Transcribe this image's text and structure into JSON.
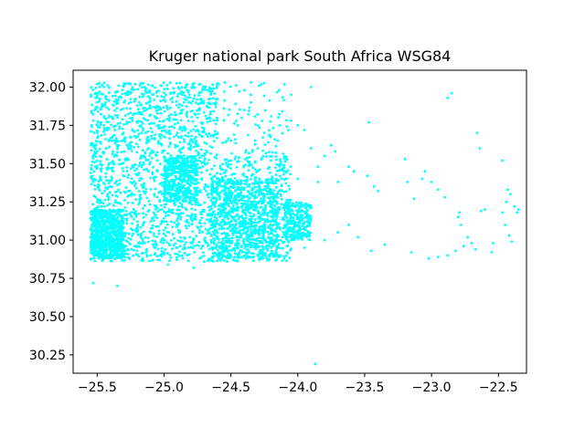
{
  "chart_data": {
    "type": "scatter",
    "title": "Kruger national park South Africa  WSG84",
    "xlabel": "",
    "ylabel": "",
    "xlim": [
      -25.68,
      -22.29
    ],
    "ylim": [
      30.13,
      32.11
    ],
    "grid": false,
    "marker_color": "#00ffff",
    "x_ticks": [
      -25.5,
      -25.0,
      -24.5,
      -24.0,
      -23.5,
      -23.0,
      -22.5
    ],
    "x_tick_labels": [
      "−25.5",
      "−25.0",
      "−24.5",
      "−24.0",
      "−23.5",
      "−23.0",
      "−22.5"
    ],
    "y_ticks": [
      30.25,
      30.5,
      30.75,
      31.0,
      31.25,
      31.5,
      31.75,
      32.0
    ],
    "y_tick_labels": [
      "30.25",
      "30.50",
      "30.75",
      "31.00",
      "31.25",
      "31.50",
      "31.75",
      "32.00"
    ],
    "series": [
      {
        "points": [
          [
            -25.53,
            30.72
          ],
          [
            -25.35,
            30.7
          ],
          [
            -23.87,
            30.19
          ],
          [
            -24.97,
            30.84
          ],
          [
            -24.78,
            30.82
          ],
          [
            -24.1,
            30.88
          ],
          [
            -24.3,
            30.9
          ],
          [
            -24.55,
            30.92
          ],
          [
            -24.7,
            30.86
          ],
          [
            -23.95,
            30.95
          ],
          [
            -23.8,
            31.0
          ],
          [
            -23.7,
            31.05
          ],
          [
            -23.62,
            31.1
          ],
          [
            -23.55,
            31.02
          ],
          [
            -23.45,
            30.93
          ],
          [
            -23.35,
            30.97
          ],
          [
            -23.15,
            30.92
          ],
          [
            -23.02,
            30.88
          ],
          [
            -22.95,
            30.89
          ],
          [
            -22.88,
            30.9
          ],
          [
            -22.82,
            30.93
          ],
          [
            -22.76,
            30.96
          ],
          [
            -22.73,
            31.02
          ],
          [
            -22.7,
            30.98
          ],
          [
            -22.67,
            30.94
          ],
          [
            -22.78,
            31.1
          ],
          [
            -22.79,
            31.18
          ],
          [
            -22.8,
            31.15
          ],
          [
            -22.54,
            30.98
          ],
          [
            -22.55,
            30.92
          ],
          [
            -22.45,
            31.1
          ],
          [
            -22.42,
            31.03
          ],
          [
            -22.4,
            30.99
          ],
          [
            -22.47,
            31.18
          ],
          [
            -22.44,
            31.25
          ],
          [
            -22.43,
            31.33
          ],
          [
            -22.41,
            31.3
          ],
          [
            -22.38,
            31.22
          ],
          [
            -22.36,
            31.18
          ],
          [
            -22.35,
            31.2
          ],
          [
            -22.47,
            31.52
          ],
          [
            -22.64,
            31.6
          ],
          [
            -22.66,
            31.7
          ],
          [
            -22.88,
            31.93
          ],
          [
            -22.85,
            31.96
          ],
          [
            -23.07,
            31.4
          ],
          [
            -23.05,
            31.45
          ],
          [
            -23.0,
            31.38
          ],
          [
            -22.95,
            31.33
          ],
          [
            -22.9,
            31.28
          ],
          [
            -22.6,
            31.2
          ],
          [
            -22.63,
            31.19
          ],
          [
            -23.13,
            31.27
          ],
          [
            -23.18,
            31.38
          ],
          [
            -23.2,
            31.53
          ],
          [
            -23.4,
            31.32
          ],
          [
            -23.43,
            31.35
          ],
          [
            -23.48,
            31.42
          ],
          [
            -23.58,
            31.45
          ],
          [
            -23.62,
            31.48
          ],
          [
            -23.7,
            31.38
          ],
          [
            -23.72,
            31.58
          ],
          [
            -23.75,
            31.62
          ],
          [
            -23.47,
            31.77
          ],
          [
            -23.9,
            31.6
          ],
          [
            -23.95,
            31.72
          ],
          [
            -24.0,
            31.75
          ],
          [
            -24.05,
            31.78
          ],
          [
            -23.9,
            32.0
          ],
          [
            -24.05,
            31.95
          ],
          [
            -24.35,
            32.03
          ],
          [
            -24.4,
            31.98
          ],
          [
            -24.55,
            31.97
          ],
          [
            -24.65,
            31.95
          ],
          [
            -24.75,
            31.8
          ],
          [
            -24.85,
            31.9
          ],
          [
            -24.95,
            31.92
          ],
          [
            -25.05,
            31.94
          ],
          [
            -25.15,
            31.95
          ],
          [
            -25.25,
            31.96
          ],
          [
            -25.35,
            31.97
          ],
          [
            -25.45,
            32.0
          ],
          [
            -25.5,
            32.02
          ],
          [
            -25.52,
            31.85
          ],
          [
            -25.5,
            31.7
          ],
          [
            -25.48,
            31.55
          ],
          [
            -25.52,
            31.4
          ],
          [
            -25.5,
            31.25
          ],
          [
            -25.51,
            31.1
          ],
          [
            -25.52,
            30.95
          ],
          [
            -25.48,
            30.9
          ],
          [
            -25.4,
            30.92
          ],
          [
            -25.3,
            30.95
          ],
          [
            -25.2,
            30.93
          ],
          [
            -25.1,
            30.9
          ],
          [
            -25.0,
            30.92
          ],
          [
            -24.9,
            30.95
          ],
          [
            -24.8,
            30.98
          ],
          [
            -24.65,
            31.0
          ],
          [
            -24.55,
            30.96
          ],
          [
            -24.45,
            31.02
          ],
          [
            -24.35,
            31.05
          ],
          [
            -24.25,
            31.0
          ],
          [
            -24.2,
            30.95
          ],
          [
            -24.15,
            31.1
          ],
          [
            -24.1,
            31.2
          ],
          [
            -24.18,
            31.3
          ],
          [
            -24.25,
            31.28
          ],
          [
            -24.35,
            31.25
          ],
          [
            -24.45,
            31.2
          ],
          [
            -24.55,
            31.18
          ],
          [
            -24.65,
            31.22
          ],
          [
            -24.75,
            31.3
          ],
          [
            -24.85,
            31.4
          ],
          [
            -24.95,
            31.48
          ],
          [
            -25.05,
            31.52
          ],
          [
            -25.15,
            31.55
          ],
          [
            -25.25,
            31.6
          ],
          [
            -25.35,
            31.65
          ],
          [
            -25.45,
            31.75
          ],
          [
            -24.02,
            31.1
          ],
          [
            -24.0,
            31.05
          ],
          [
            -23.98,
            31.15
          ],
          [
            -23.95,
            31.08
          ],
          [
            -23.92,
            31.12
          ],
          [
            -24.05,
            31.0
          ],
          [
            -24.08,
            31.18
          ],
          [
            -23.97,
            31.22
          ],
          [
            -24.6,
            31.4
          ],
          [
            -24.7,
            31.55
          ],
          [
            -24.8,
            31.62
          ],
          [
            -24.9,
            31.7
          ],
          [
            -25.0,
            31.78
          ],
          [
            -25.1,
            31.82
          ],
          [
            -25.2,
            31.88
          ],
          [
            -25.3,
            31.9
          ],
          [
            -24.5,
            31.65
          ],
          [
            -24.45,
            31.75
          ],
          [
            -24.4,
            31.85
          ],
          [
            -24.35,
            31.9
          ],
          [
            -24.6,
            31.7
          ],
          [
            -24.3,
            31.6
          ],
          [
            -24.2,
            31.52
          ],
          [
            -24.1,
            31.45
          ],
          [
            -24.0,
            31.4
          ],
          [
            -23.85,
            31.38
          ],
          [
            -23.8,
            31.55
          ],
          [
            -23.85,
            31.48
          ],
          [
            -24.25,
            31.7
          ],
          [
            -24.15,
            31.65
          ]
        ]
      }
    ],
    "clusters": [
      {
        "x": [
          -25.55,
          -24.05
        ],
        "y": [
          30.86,
          32.03
        ],
        "n": 2600,
        "shape": "dense"
      },
      {
        "x": [
          -25.55,
          -25.3
        ],
        "y": [
          30.88,
          31.2
        ],
        "n": 700,
        "shape": "dense"
      },
      {
        "x": [
          -24.65,
          -24.15
        ],
        "y": [
          30.88,
          31.4
        ],
        "n": 700,
        "shape": "dense"
      },
      {
        "x": [
          -25.0,
          -24.75
        ],
        "y": [
          31.25,
          31.55
        ],
        "n": 400,
        "shape": "dense"
      },
      {
        "x": [
          -24.1,
          -23.9
        ],
        "y": [
          31.0,
          31.25
        ],
        "n": 250,
        "shape": "dense"
      }
    ]
  }
}
